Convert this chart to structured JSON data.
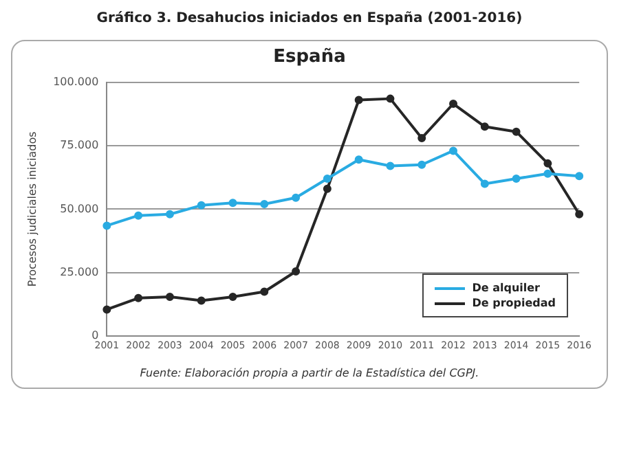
{
  "chart_data": {
    "type": "line",
    "title": "Gráfico 3. Desahucios iniciados en España (2001-2016)",
    "subtitle": "España",
    "ylabel": "Procesos judiciales iniciados",
    "categories": [
      "2001",
      "2002",
      "2003",
      "2004",
      "2005",
      "2006",
      "2007",
      "2008",
      "2009",
      "2010",
      "2011",
      "2012",
      "2013",
      "2014",
      "2015",
      "2016"
    ],
    "series": [
      {
        "name": "De alquiler",
        "color": "#29abe2",
        "values": [
          43500,
          47500,
          48000,
          51500,
          52500,
          52000,
          54500,
          62000,
          69500,
          67000,
          67500,
          73000,
          60000,
          62000,
          64000,
          63000
        ]
      },
      {
        "name": "De propiedad",
        "color": "#262626",
        "values": [
          10500,
          15000,
          15500,
          14000,
          15500,
          17500,
          25500,
          58000,
          93000,
          93500,
          78000,
          91500,
          82500,
          80500,
          68000,
          48000
        ]
      }
    ],
    "ylim": [
      0,
      100000
    ],
    "yticks": [
      {
        "value": 0,
        "label": "0"
      },
      {
        "value": 25000,
        "label": "25.000"
      },
      {
        "value": 50000,
        "label": "50.000"
      },
      {
        "value": 75000,
        "label": "75.000"
      },
      {
        "value": 100000,
        "label": "100.000"
      }
    ],
    "grid": "y",
    "legend": "bottom right",
    "marker": "circle",
    "line_style": "solid",
    "annotations": [
      "Fuente: Elaboración propia a partir de la Estadística del CGPJ."
    ]
  }
}
